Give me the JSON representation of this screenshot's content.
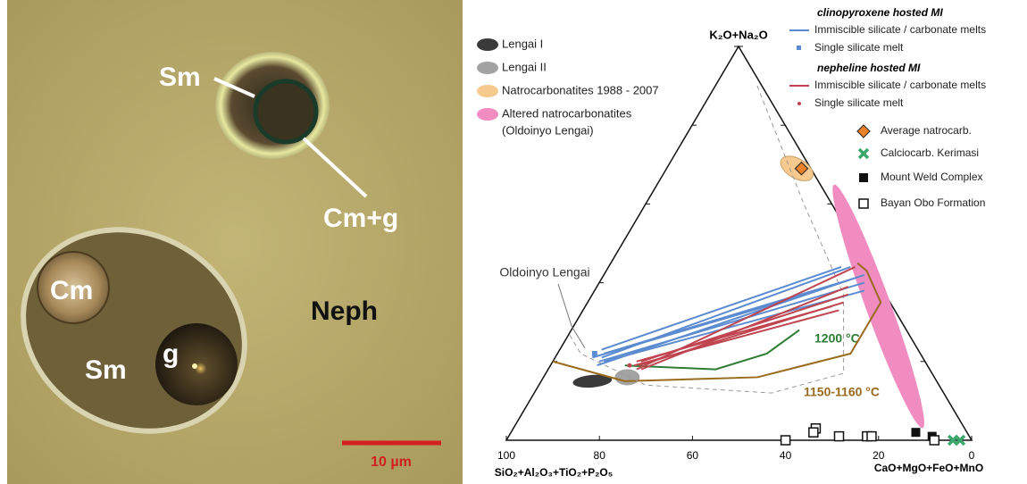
{
  "micrograph": {
    "labels": [
      "Sm",
      "Cm+g",
      "Cm",
      "Sm",
      "g",
      "Neph"
    ],
    "scale_bar": "10 µm"
  },
  "chart_data": {
    "type": "ternary",
    "apex_top": "K₂O+Na₂O",
    "apex_left": "SiO₂+Al₂O₃+TiO₂+P₂O₅",
    "apex_right": "CaO+MgO+FeO+MnO",
    "bottom_ticks": [
      100,
      80,
      60,
      40,
      20,
      0
    ],
    "fields": [
      {
        "name": "Lengai I",
        "color": "#3a3a3a",
        "center": [
          15,
          74
        ]
      },
      {
        "name": "Lengai II",
        "color": "#a3a3a3",
        "center": [
          16,
          66
        ]
      },
      {
        "name": "Natrocarbonatites 1988 - 2007",
        "color": "#f6c98f",
        "center": [
          69,
          3
        ]
      },
      {
        "name_lines": [
          "Altered natrocarbonatites",
          "(Oldoinyo Lengai)"
        ],
        "color": "#f08cc0",
        "center": [
          34,
          3
        ]
      }
    ],
    "tie_lines": [
      {
        "host": "clinopyroxene hosted MI",
        "color": "#5b8bd0",
        "immiscible": {
          "name": "Immiscible silicate / carbonate melts",
          "lines": [
            [
              [
                20,
                70
              ],
              [
                40,
                3
              ]
            ],
            [
              [
                21,
                69
              ],
              [
                44,
                4
              ]
            ],
            [
              [
                19,
                71
              ],
              [
                42,
                2
              ]
            ],
            [
              [
                22,
                68
              ],
              [
                41,
                5
              ]
            ],
            [
              [
                20,
                69
              ],
              [
                38,
                4
              ]
            ],
            [
              [
                23,
                68
              ],
              [
                44,
                6
              ]
            ],
            [
              [
                21,
                71
              ],
              [
                37,
                17
              ]
            ]
          ]
        },
        "single": {
          "name": "Single silicate melt",
          "points": [
            [
              22,
              70
            ]
          ]
        }
      },
      {
        "host": "nepheline hosted MI",
        "color": "#c0444f",
        "immiscible": {
          "name": "Immiscible silicate / carbonate melts",
          "lines": [
            [
              [
                19,
                62
              ],
              [
                35,
                10
              ]
            ],
            [
              [
                18,
                63
              ],
              [
                44,
                3
              ]
            ],
            [
              [
                20,
                61
              ],
              [
                37,
                8
              ]
            ],
            [
              [
                19,
                63
              ],
              [
                33,
                12
              ]
            ],
            [
              [
                18,
                62
              ],
              [
                39,
                7
              ]
            ],
            [
              [
                20,
                62
              ],
              [
                34,
                13
              ]
            ]
          ]
        },
        "single": {
          "name": "Single silicate melt",
          "points": [
            [
              19,
              64
            ]
          ]
        }
      }
    ],
    "markers": [
      {
        "name": "Average natrocarb.",
        "marker": "diamond",
        "color": "#e8812a",
        "points": [
          [
            69,
            2
          ]
        ]
      },
      {
        "name": "Calciocarb. Kerimasi",
        "marker": "cross",
        "color": "#3aa76d",
        "points": [
          [
            0,
            4
          ],
          [
            0,
            2.5
          ]
        ]
      },
      {
        "name": "Mount Weld Complex",
        "marker": "square",
        "color": "#111111",
        "points": [
          [
            2,
            11
          ],
          [
            1,
            8
          ]
        ]
      },
      {
        "name": "Bayan Obo Formation",
        "marker": "open-square",
        "color": "#111111",
        "points": [
          [
            0,
            40
          ],
          [
            3,
            32
          ],
          [
            2,
            33
          ],
          [
            1,
            28
          ],
          [
            1,
            22
          ],
          [
            1,
            21
          ],
          [
            0,
            8
          ]
        ]
      }
    ],
    "curves": [
      {
        "label": "1200 °C",
        "color": "#2e7d32",
        "style": "solid",
        "points": [
          [
            19,
            65
          ],
          [
            18,
            46
          ],
          [
            22,
            33
          ],
          [
            28,
            23
          ]
        ]
      },
      {
        "label": "1150-1160 °C",
        "color": "#9a6a1c",
        "style": "solid",
        "points": [
          [
            20,
            80
          ],
          [
            15,
            67
          ],
          [
            16,
            38
          ],
          [
            22,
            15
          ],
          [
            35,
            2
          ],
          [
            43,
            1
          ],
          [
            45,
            2
          ]
        ]
      },
      {
        "label": "Oldoinyo Lengai",
        "color": "#9a9a9a",
        "style": "dashed",
        "points": [
          [
            90,
            1
          ],
          [
            60,
            6
          ],
          [
            37,
            9
          ],
          [
            17,
            19
          ],
          [
            12,
            37
          ],
          [
            14,
            63
          ],
          [
            22,
            73
          ],
          [
            27,
            73
          ]
        ]
      }
    ]
  }
}
